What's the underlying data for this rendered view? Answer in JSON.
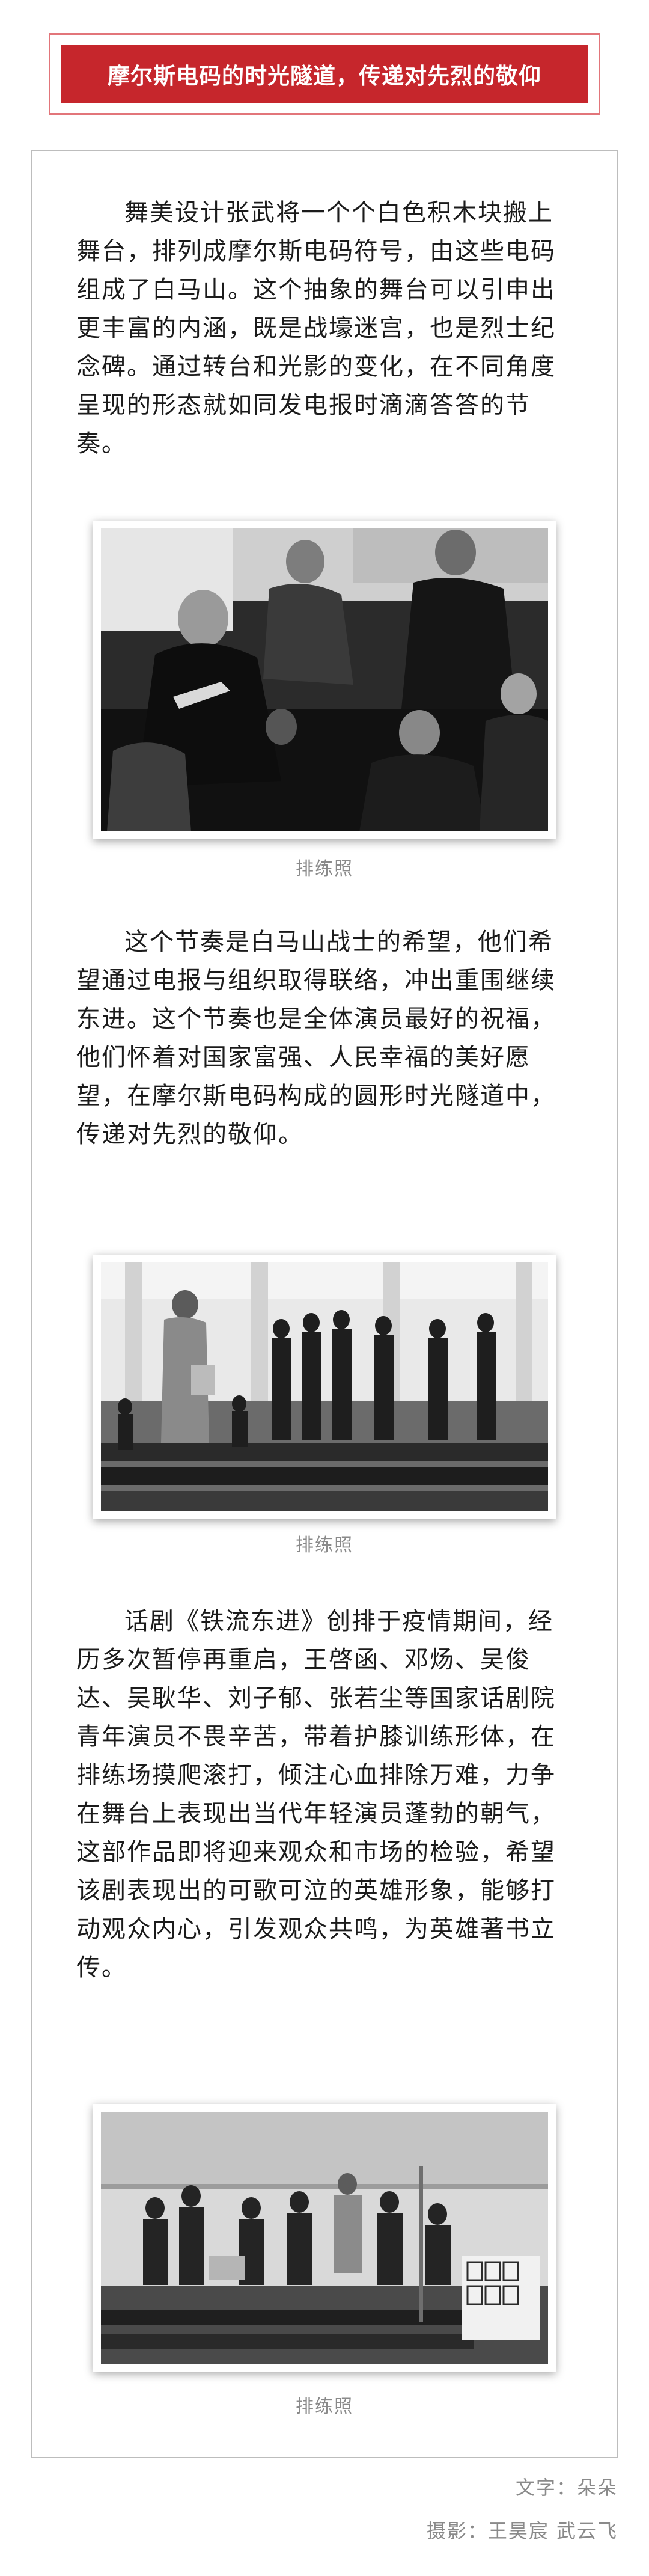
{
  "header": {
    "title": "摩尔斯电码的时光隧道，传递对先烈的敬仰",
    "colors": {
      "accent": "#c6262c",
      "frame": "#e2757a"
    }
  },
  "sections": [
    {
      "paragraph": "舞美设计张武将一个个白色积木块搬上舞台，排列成摩尔斯电码符号，由这些电码组成了白马山。这个抽象的舞台可以引申出更丰富的内涵，既是战壕迷宫，也是烈士纪念碑。通过转台和光影的变化，在不同角度呈现的形态就如同发电报时滴滴答答的节奏。",
      "caption": "排练照"
    },
    {
      "paragraph": "这个节奏是白马山战士的希望，他们希望通过电报与组织取得联络，冲出重围继续东进。这个节奏也是全体演员最好的祝福，他们怀着对国家富强、人民幸福的美好愿望，在摩尔斯电码构成的圆形时光隧道中，传递对先烈的敬仰。",
      "caption": "排练照"
    },
    {
      "paragraph": "话剧《铁流东进》创排于疫情期间，经历多次暂停再重启，王啓函、邓炀、吴俊达、吴耿华、刘子郁、张若尘等国家话剧院青年演员不畏辛苦，带着护膝训练形体，在排练场摸爬滚打，倾注心血排除万难，力争在舞台上表现出当代年轻演员蓬勃的朝气，这部作品即将迎来观众和市场的检验，希望该剧表现出的可歌可泣的英雄形象，能够打动观众内心，引发观众共鸣，为英雄著书立传。",
      "caption": "排练照"
    }
  ],
  "credits": {
    "text": "文字：朵朵",
    "photo": "摄影：王昊宸 武云飞"
  }
}
